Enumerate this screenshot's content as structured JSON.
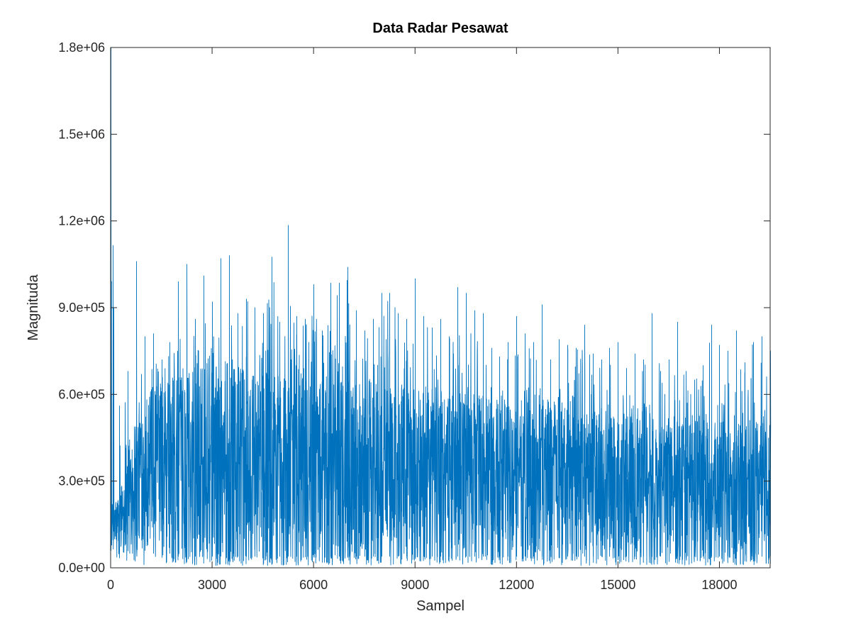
{
  "chart_data": {
    "type": "line",
    "title": "Data Radar Pesawat",
    "xlabel": "Sampel",
    "ylabel": "Magnituda",
    "xlim": [
      0,
      19500
    ],
    "ylim": [
      0,
      1800000
    ],
    "xticks": [
      0,
      3000,
      6000,
      9000,
      12000,
      15000,
      18000
    ],
    "xtick_labels": [
      "0",
      "3000",
      "6000",
      "9000",
      "12000",
      "15000",
      "18000"
    ],
    "yticks": [
      0,
      300000,
      600000,
      900000,
      1200000,
      1500000,
      1800000
    ],
    "ytick_labels": [
      "0.0e+00",
      "3.0e+05",
      "6.0e+05",
      "9.0e+05",
      "1.2e+06",
      "1.5e+06",
      "1.8e+06"
    ],
    "grid": false,
    "series": [
      {
        "color": "#0072bd",
        "n_samples": 19500,
        "envelope_step": 250,
        "envelope_x": [
          0,
          250,
          500,
          750,
          1000,
          1250,
          1500,
          1750,
          2000,
          2250,
          2500,
          2750,
          3000,
          3250,
          3500,
          3750,
          4000,
          4250,
          4500,
          4750,
          5000,
          5250,
          5500,
          5750,
          6000,
          6250,
          6500,
          6750,
          7000,
          7250,
          7500,
          7750,
          8000,
          8250,
          8500,
          8750,
          9000,
          9250,
          9500,
          9750,
          10000,
          10250,
          10500,
          10750,
          11000,
          11250,
          11500,
          11750,
          12000,
          12250,
          12500,
          12750,
          13000,
          13250,
          13500,
          13750,
          14000,
          14250,
          14500,
          14750,
          15000,
          15250,
          15500,
          15750,
          16000,
          16250,
          16500,
          16750,
          17000,
          17250,
          17500,
          17750,
          18000,
          18250,
          18500,
          18750,
          19000,
          19250,
          19500
        ],
        "envelope_max": [
          1800000,
          560000,
          680000,
          1060000,
          800000,
          810000,
          720000,
          780000,
          990000,
          1050000,
          860000,
          1010000,
          920000,
          1070000,
          1080000,
          880000,
          930000,
          900000,
          880000,
          1075000,
          850000,
          1185000,
          870000,
          860000,
          980000,
          820000,
          985000,
          985000,
          1040000,
          890000,
          820000,
          860000,
          950000,
          950000,
          880000,
          860000,
          1000000,
          870000,
          830000,
          860000,
          800000,
          970000,
          950000,
          890000,
          880000,
          760000,
          730000,
          780000,
          870000,
          810000,
          780000,
          910000,
          720000,
          790000,
          770000,
          760000,
          840000,
          740000,
          720000,
          760000,
          780000,
          690000,
          740000,
          720000,
          880000,
          680000,
          720000,
          850000,
          680000,
          650000,
          700000,
          840000,
          770000,
          750000,
          820000,
          710000,
          780000,
          800000,
          750000
        ],
        "envelope_upper": [
          220000,
          250000,
          430000,
          560000,
          600000,
          620000,
          630000,
          640000,
          660000,
          670000,
          680000,
          690000,
          690000,
          700000,
          690000,
          680000,
          690000,
          680000,
          670000,
          680000,
          670000,
          680000,
          670000,
          660000,
          660000,
          650000,
          650000,
          650000,
          640000,
          640000,
          620000,
          630000,
          630000,
          620000,
          620000,
          610000,
          610000,
          610000,
          600000,
          600000,
          590000,
          600000,
          590000,
          580000,
          580000,
          570000,
          560000,
          560000,
          550000,
          550000,
          550000,
          550000,
          540000,
          540000,
          530000,
          540000,
          530000,
          530000,
          520000,
          520000,
          520000,
          520000,
          510000,
          510000,
          520000,
          470000,
          500000,
          510000,
          510000,
          500000,
          500000,
          500000,
          500000,
          510000,
          500000,
          500000,
          510000,
          500000,
          520000
        ],
        "envelope_lower": [
          60000,
          70000,
          80000,
          70000,
          60000,
          50000,
          50000,
          50000,
          40000,
          40000,
          40000,
          40000,
          40000,
          40000,
          40000,
          40000,
          40000,
          40000,
          40000,
          40000,
          40000,
          40000,
          40000,
          40000,
          40000,
          40000,
          40000,
          40000,
          40000,
          40000,
          40000,
          40000,
          40000,
          40000,
          40000,
          40000,
          40000,
          40000,
          40000,
          40000,
          40000,
          40000,
          40000,
          40000,
          40000,
          40000,
          40000,
          40000,
          40000,
          40000,
          40000,
          40000,
          40000,
          40000,
          40000,
          40000,
          40000,
          40000,
          40000,
          40000,
          40000,
          40000,
          40000,
          40000,
          40000,
          40000,
          40000,
          40000,
          40000,
          40000,
          40000,
          40000,
          40000,
          40000,
          40000,
          40000,
          40000,
          40000,
          40000
        ],
        "envelope_min": [
          10000,
          20000,
          20000,
          15000,
          10000,
          10000,
          10000,
          10000,
          8000,
          8000,
          8000,
          8000,
          8000,
          8000,
          8000,
          8000,
          8000,
          8000,
          8000,
          8000,
          8000,
          8000,
          8000,
          8000,
          8000,
          8000,
          8000,
          8000,
          8000,
          8000,
          8000,
          8000,
          8000,
          8000,
          8000,
          8000,
          8000,
          8000,
          8000,
          8000,
          8000,
          8000,
          8000,
          8000,
          8000,
          8000,
          8000,
          8000,
          8000,
          8000,
          8000,
          8000,
          8000,
          8000,
          8000,
          8000,
          8000,
          8000,
          8000,
          8000,
          8000,
          8000,
          8000,
          8000,
          8000,
          8000,
          8000,
          8000,
          8000,
          8000,
          8000,
          8000,
          8000,
          8000,
          8000,
          8000,
          8000,
          8000,
          8000
        ]
      }
    ]
  }
}
